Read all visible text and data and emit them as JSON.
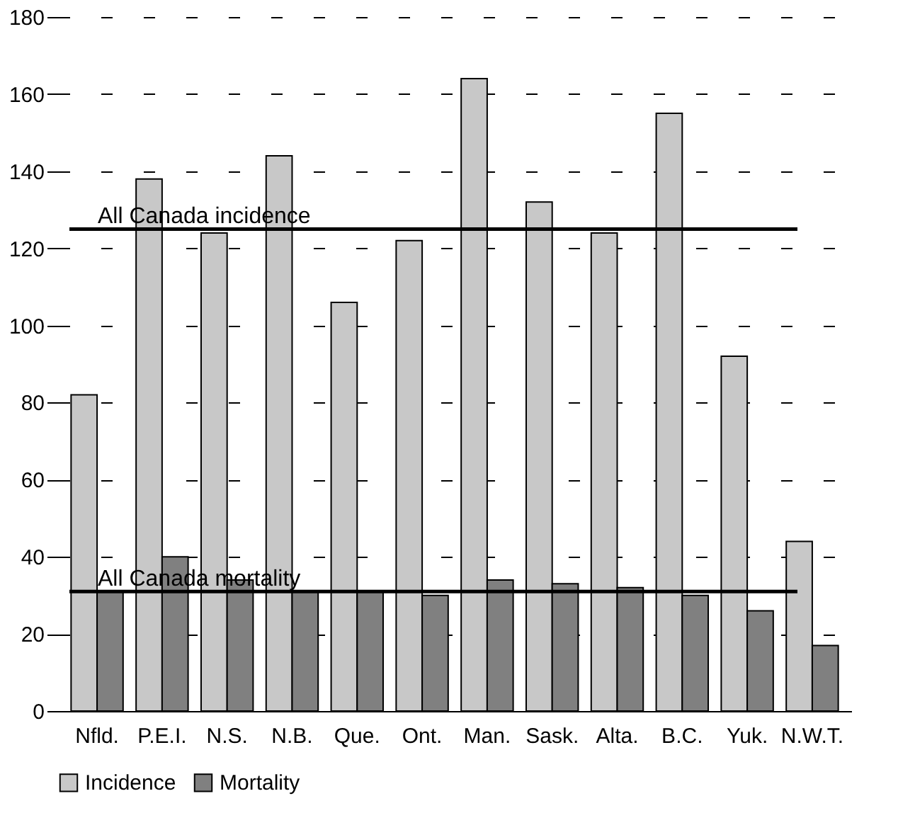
{
  "chart_data": {
    "type": "bar",
    "categories": [
      "Nfld.",
      "P.E.I.",
      "N.S.",
      "N.B.",
      "Que.",
      "Ont.",
      "Man.",
      "Sask.",
      "Alta.",
      "B.C.",
      "Yuk.",
      "N.W.T."
    ],
    "series": [
      {
        "name": "Incidence",
        "color": "#c8c8c8",
        "values": [
          82,
          138,
          124,
          144,
          106,
          122,
          164,
          132,
          124,
          155,
          92,
          44
        ]
      },
      {
        "name": "Mortality",
        "color": "#808080",
        "values": [
          31,
          40,
          34,
          31,
          31,
          30,
          34,
          33,
          32,
          30,
          26,
          17
        ]
      }
    ],
    "ylim": [
      0,
      180
    ],
    "yticks": [
      0,
      20,
      40,
      60,
      80,
      100,
      120,
      140,
      160,
      180
    ],
    "ref_lines": [
      {
        "axis": "y",
        "value": 125,
        "label": "All Canada incidence",
        "color": "#000000"
      },
      {
        "axis": "y",
        "value": 31,
        "label": "All Canada mortality",
        "color": "#000000"
      }
    ],
    "grid": "y",
    "legend": "bottom"
  }
}
